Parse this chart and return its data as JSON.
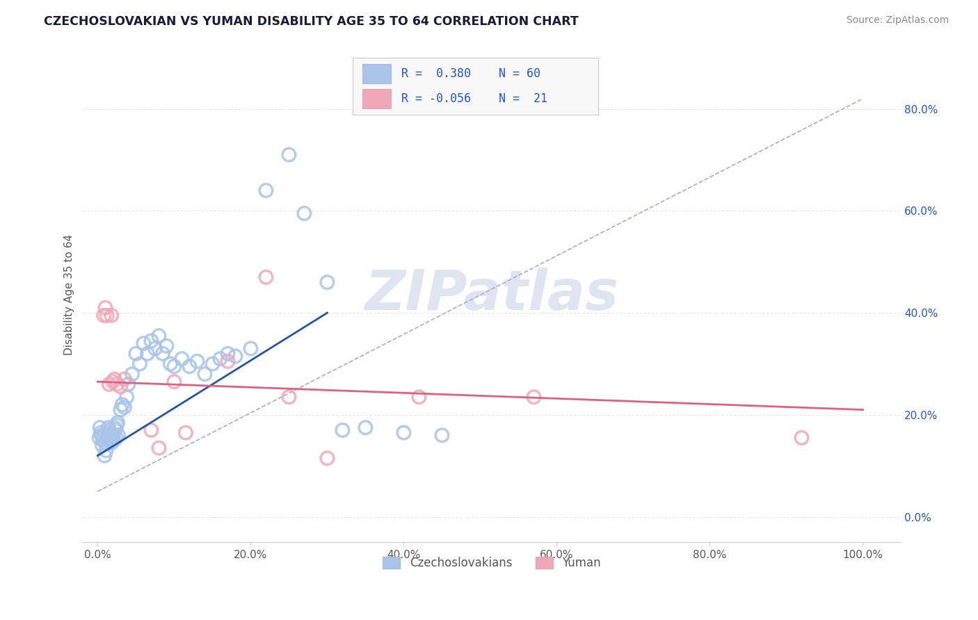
{
  "title": "CZECHOSLOVAKIAN VS YUMAN DISABILITY AGE 35 TO 64 CORRELATION CHART",
  "source": "Source: ZipAtlas.com",
  "ylabel": "Disability Age 35 to 64",
  "xlim": [
    -0.02,
    1.05
  ],
  "ylim": [
    -0.05,
    0.92
  ],
  "x_ticks": [
    0.0,
    0.2,
    0.4,
    0.6,
    0.8,
    1.0
  ],
  "x_tick_labels": [
    "0.0%",
    "20.0%",
    "40.0%",
    "60.0%",
    "80.0%",
    "100.0%"
  ],
  "y_ticks": [
    0.0,
    0.2,
    0.4,
    0.6,
    0.8
  ],
  "y_tick_labels": [
    "0.0%",
    "20.0%",
    "40.0%",
    "60.0%",
    "80.0%"
  ],
  "czech_R": 0.38,
  "czech_N": 60,
  "yuman_R": -0.056,
  "yuman_N": 21,
  "czech_color": "#a8c4e8",
  "yuman_color": "#f0a8b8",
  "czech_line_color": "#2255aa",
  "yuman_line_color": "#e06080",
  "dash_line_color": "#aaaacc",
  "legend_text_color": "#2255cc",
  "background_color": "#ffffff",
  "watermark_text": "ZIPatlas",
  "watermark_color": "#c8d4e8",
  "grid_color": "#e8e8e8",
  "grid_style": "--",
  "czech_points": [
    [
      0.002,
      0.155
    ],
    [
      0.003,
      0.175
    ],
    [
      0.004,
      0.165
    ],
    [
      0.005,
      0.16
    ],
    [
      0.006,
      0.14
    ],
    [
      0.007,
      0.15
    ],
    [
      0.008,
      0.16
    ],
    [
      0.009,
      0.12
    ],
    [
      0.01,
      0.145
    ],
    [
      0.011,
      0.13
    ],
    [
      0.012,
      0.155
    ],
    [
      0.013,
      0.16
    ],
    [
      0.014,
      0.175
    ],
    [
      0.015,
      0.17
    ],
    [
      0.016,
      0.16
    ],
    [
      0.017,
      0.15
    ],
    [
      0.018,
      0.145
    ],
    [
      0.019,
      0.16
    ],
    [
      0.02,
      0.155
    ],
    [
      0.021,
      0.15
    ],
    [
      0.022,
      0.175
    ],
    [
      0.023,
      0.17
    ],
    [
      0.024,
      0.155
    ],
    [
      0.025,
      0.18
    ],
    [
      0.026,
      0.185
    ],
    [
      0.027,
      0.16
    ],
    [
      0.03,
      0.21
    ],
    [
      0.032,
      0.22
    ],
    [
      0.035,
      0.215
    ],
    [
      0.038,
      0.235
    ],
    [
      0.04,
      0.26
    ],
    [
      0.045,
      0.28
    ],
    [
      0.05,
      0.32
    ],
    [
      0.055,
      0.3
    ],
    [
      0.06,
      0.34
    ],
    [
      0.065,
      0.32
    ],
    [
      0.07,
      0.345
    ],
    [
      0.075,
      0.33
    ],
    [
      0.08,
      0.355
    ],
    [
      0.085,
      0.32
    ],
    [
      0.09,
      0.335
    ],
    [
      0.095,
      0.3
    ],
    [
      0.1,
      0.295
    ],
    [
      0.11,
      0.31
    ],
    [
      0.12,
      0.295
    ],
    [
      0.13,
      0.305
    ],
    [
      0.14,
      0.28
    ],
    [
      0.15,
      0.3
    ],
    [
      0.16,
      0.31
    ],
    [
      0.17,
      0.32
    ],
    [
      0.18,
      0.315
    ],
    [
      0.2,
      0.33
    ],
    [
      0.22,
      0.64
    ],
    [
      0.25,
      0.71
    ],
    [
      0.27,
      0.595
    ],
    [
      0.3,
      0.46
    ],
    [
      0.32,
      0.17
    ],
    [
      0.35,
      0.175
    ],
    [
      0.4,
      0.165
    ],
    [
      0.45,
      0.16
    ]
  ],
  "yuman_points": [
    [
      0.008,
      0.395
    ],
    [
      0.01,
      0.41
    ],
    [
      0.012,
      0.395
    ],
    [
      0.015,
      0.26
    ],
    [
      0.018,
      0.395
    ],
    [
      0.02,
      0.265
    ],
    [
      0.022,
      0.27
    ],
    [
      0.025,
      0.26
    ],
    [
      0.03,
      0.255
    ],
    [
      0.035,
      0.27
    ],
    [
      0.07,
      0.17
    ],
    [
      0.08,
      0.135
    ],
    [
      0.1,
      0.265
    ],
    [
      0.115,
      0.165
    ],
    [
      0.17,
      0.305
    ],
    [
      0.22,
      0.47
    ],
    [
      0.25,
      0.235
    ],
    [
      0.3,
      0.115
    ],
    [
      0.42,
      0.235
    ],
    [
      0.57,
      0.235
    ],
    [
      0.92,
      0.155
    ]
  ],
  "czech_line_x": [
    0.0,
    0.3
  ],
  "czech_line_y": [
    0.12,
    0.4
  ],
  "yuman_line_x": [
    0.0,
    1.0
  ],
  "yuman_line_y": [
    0.265,
    0.21
  ],
  "dash_line_x": [
    0.0,
    1.0
  ],
  "dash_line_y": [
    0.05,
    0.82
  ]
}
